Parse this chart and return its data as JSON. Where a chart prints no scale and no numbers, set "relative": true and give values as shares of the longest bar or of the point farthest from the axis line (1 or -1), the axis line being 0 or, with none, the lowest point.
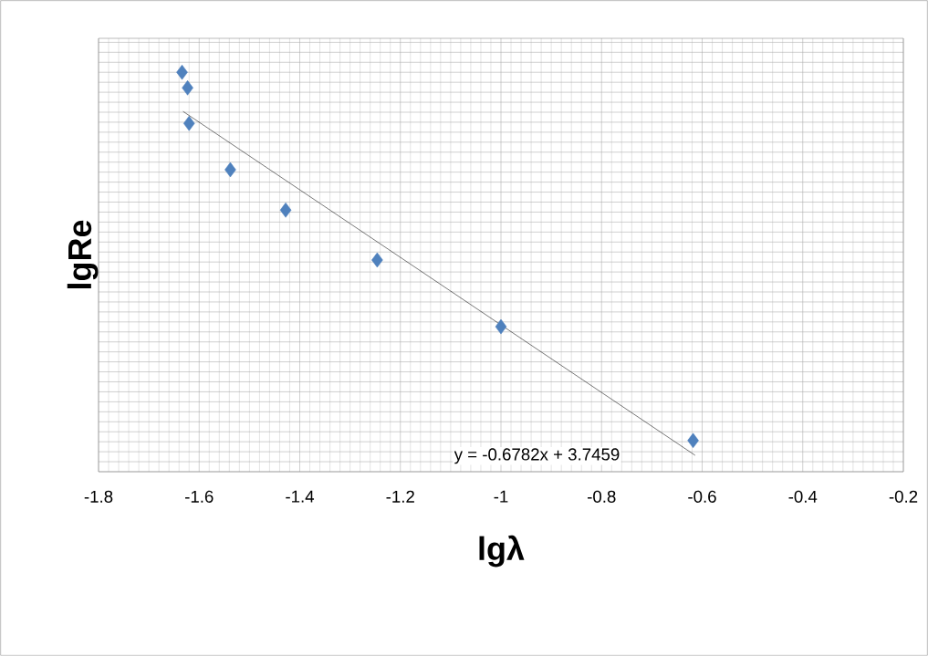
{
  "chart_data": {
    "type": "scatter",
    "xlabel": "lgλ",
    "ylabel": "lgRe",
    "relative": true,
    "xlim": [
      -1.8,
      -0.2
    ],
    "xticks": [
      -1.8,
      -1.6,
      -1.4,
      -1.2,
      -1,
      -0.8,
      -0.6,
      -0.4,
      -0.2
    ],
    "grid": true,
    "marker": "diamond",
    "series": [
      {
        "color": "#4f81bd",
        "x": [
          -1.634,
          -1.623,
          -1.62,
          -1.538,
          -1.428,
          -1.246,
          -1.0,
          -0.618
        ],
        "values": [
          1,
          0.961,
          0.872,
          0.756,
          0.655,
          0.53,
          0.363,
          0.078
        ]
      },
      {
        "type": "line",
        "color": "#000000",
        "marker": "none",
        "x": [
          -1.632,
          -0.614
        ],
        "values": [
          0.902,
          0.041
        ]
      }
    ],
    "annotations": [
      "y = -0.6782x + 3.7459"
    ]
  }
}
